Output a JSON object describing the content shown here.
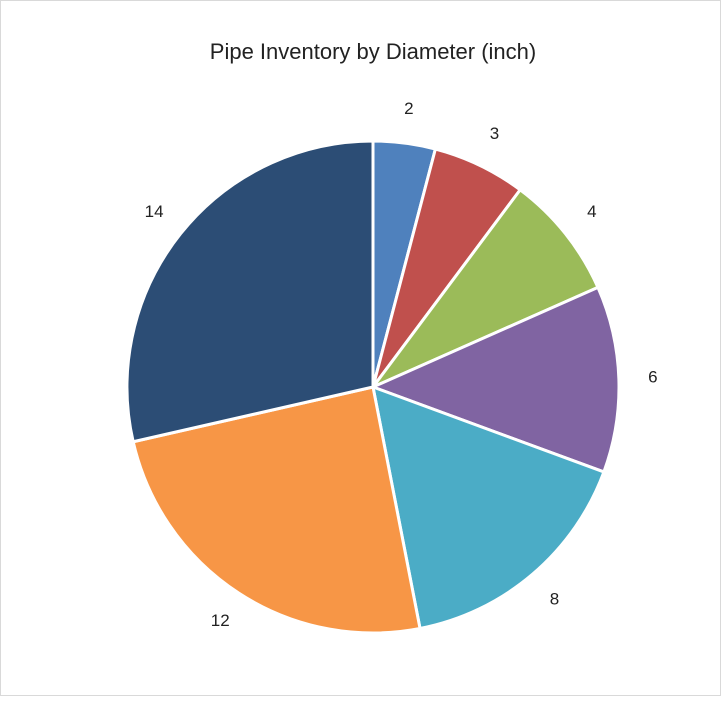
{
  "chart_data": {
    "type": "pie",
    "title": "Pipe Inventory by Diameter (inch)",
    "values": [
      2,
      3,
      4,
      6,
      8,
      12,
      14
    ],
    "colors": [
      "#4f81bd",
      "#c0504d",
      "#9bbb59",
      "#8064a2",
      "#4bacc6",
      "#f79646",
      "#2c4d75"
    ]
  }
}
